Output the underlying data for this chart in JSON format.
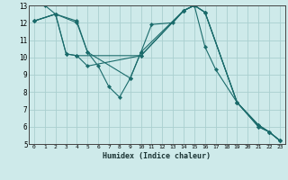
{
  "xlabel": "Humidex (Indice chaleur)",
  "bg_color": "#ceeaea",
  "grid_color": "#aacfcf",
  "line_color": "#1a6b6b",
  "xlim": [
    -0.5,
    23.5
  ],
  "ylim": [
    5,
    13
  ],
  "xticks": [
    0,
    1,
    2,
    3,
    4,
    5,
    6,
    7,
    8,
    9,
    10,
    11,
    12,
    13,
    14,
    15,
    16,
    17,
    18,
    19,
    20,
    21,
    22,
    23
  ],
  "yticks": [
    5,
    6,
    7,
    8,
    9,
    10,
    11,
    12,
    13
  ],
  "lines": [
    {
      "x": [
        1,
        2,
        4,
        5,
        6,
        7,
        8,
        9,
        10,
        11,
        13,
        14,
        15,
        16,
        17,
        19,
        21,
        22,
        23
      ],
      "y": [
        13.0,
        12.5,
        12.0,
        10.3,
        9.5,
        8.3,
        7.7,
        8.8,
        10.3,
        11.9,
        12.0,
        12.7,
        13.0,
        10.6,
        9.3,
        7.4,
        6.0,
        5.7,
        5.2
      ]
    },
    {
      "x": [
        0,
        2,
        4,
        5,
        9,
        10,
        14,
        15,
        16,
        19,
        21,
        22,
        23
      ],
      "y": [
        12.1,
        12.5,
        12.1,
        10.3,
        8.8,
        10.3,
        12.7,
        13.0,
        12.6,
        7.4,
        6.0,
        5.7,
        5.2
      ]
    },
    {
      "x": [
        0,
        2,
        3,
        4,
        10,
        14,
        15,
        16,
        19,
        21,
        22,
        23
      ],
      "y": [
        12.1,
        12.5,
        10.2,
        10.1,
        10.1,
        12.7,
        13.0,
        12.6,
        7.4,
        6.1,
        5.7,
        5.2
      ]
    },
    {
      "x": [
        0,
        2,
        3,
        4,
        5,
        10,
        14,
        15,
        16,
        19,
        21,
        22,
        23
      ],
      "y": [
        12.1,
        12.5,
        10.2,
        10.1,
        9.5,
        10.1,
        12.7,
        13.0,
        12.6,
        7.4,
        6.1,
        5.7,
        5.2
      ]
    }
  ]
}
